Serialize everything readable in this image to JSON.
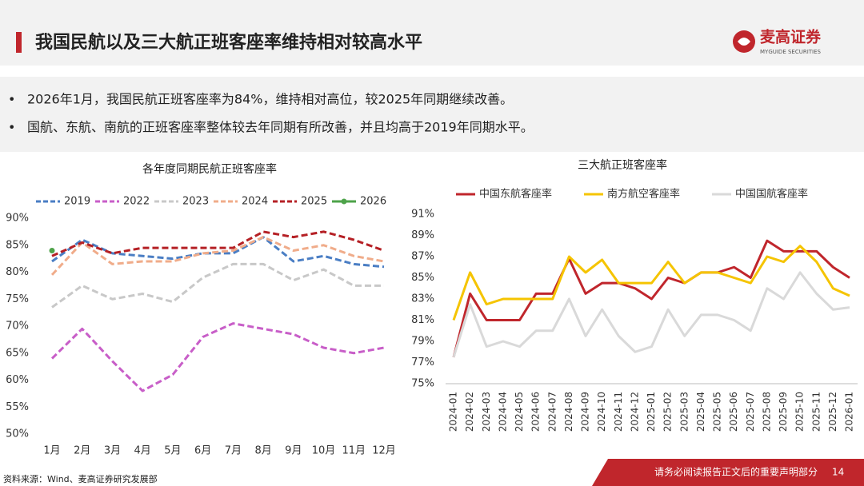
{
  "header": {
    "title": "我国民航以及三大航正班客座率维持相对较高水平",
    "logo": "麦高证券",
    "logo_sub": "MYGUIDE SECURITIES"
  },
  "bullets": [
    "2026年1月，我国民航正班客座率为84%，维持相对高位，较2025年同期继续改善。",
    "国航、东航、南航的正班客座率整体较去年同期有所改善，并且均高于2019年同期水平。"
  ],
  "chart_data": [
    {
      "type": "line",
      "title": "各年度同期民航正班客座率",
      "categories": [
        "1月",
        "2月",
        "3月",
        "4月",
        "5月",
        "6月",
        "7月",
        "8月",
        "9月",
        "10月",
        "11月",
        "12月"
      ],
      "ylim": [
        50,
        90
      ],
      "yticks": [
        {
          "value": 50,
          "label": "50%"
        },
        {
          "value": 55,
          "label": "55%"
        },
        {
          "value": 60,
          "label": "60%"
        },
        {
          "value": 65,
          "label": "65%"
        },
        {
          "value": 70,
          "label": "70%"
        },
        {
          "value": 75,
          "label": "75%"
        },
        {
          "value": 80,
          "label": "80%"
        },
        {
          "value": 85,
          "label": "85%"
        },
        {
          "value": 90,
          "label": "90%"
        }
      ],
      "grid": false,
      "series": [
        {
          "name": "2019",
          "color": "#4a7ec4",
          "dash": true,
          "values": [
            82,
            86,
            83.5,
            83,
            82.5,
            83.5,
            83.5,
            86.5,
            82,
            83,
            81.5,
            81
          ]
        },
        {
          "name": "2022",
          "color": "#c85ec8",
          "dash": true,
          "values": [
            64,
            69.5,
            63.5,
            58,
            61,
            68,
            70.5,
            69.5,
            68.5,
            66,
            65,
            66
          ]
        },
        {
          "name": "2023",
          "color": "#c8c8c8",
          "dash": true,
          "values": [
            73.5,
            77.5,
            75,
            76,
            74.5,
            79,
            81.5,
            81.5,
            78.5,
            80.5,
            77.5,
            77.5
          ]
        },
        {
          "name": "2024",
          "color": "#f0ac8a",
          "dash": true,
          "values": [
            79.5,
            85.5,
            81.5,
            82,
            82,
            83.5,
            84,
            86.5,
            84,
            85,
            83,
            82
          ]
        },
        {
          "name": "2025",
          "color": "#b52025",
          "dash": true,
          "values": [
            83,
            85.5,
            83.5,
            84.5,
            84.5,
            84.5,
            84.5,
            87.5,
            86.5,
            87.5,
            86,
            84
          ]
        },
        {
          "name": "2026",
          "color": "#4ea34a",
          "dash": false,
          "marker": true,
          "values": [
            84,
            null,
            null,
            null,
            null,
            null,
            null,
            null,
            null,
            null,
            null,
            null
          ]
        }
      ]
    },
    {
      "type": "line",
      "title": "三大航正班客座率",
      "categories": [
        "2024-01",
        "2024-02",
        "2024-03",
        "2024-04",
        "2024-05",
        "2024-06",
        "2024-07",
        "2024-08",
        "2024-09",
        "2024-10",
        "2024-11",
        "2024-12",
        "2025-01",
        "2025-02",
        "2025-03",
        "2025-04",
        "2025-05",
        "2025-06",
        "2025-07",
        "2025-08",
        "2025-09",
        "2025-10",
        "2025-11",
        "2025-12",
        "2026-01"
      ],
      "ylim": [
        75,
        91
      ],
      "yticks": [
        {
          "value": 75,
          "label": "75%"
        },
        {
          "value": 77,
          "label": "77%"
        },
        {
          "value": 79,
          "label": "79%"
        },
        {
          "value": 81,
          "label": "81%"
        },
        {
          "value": 83,
          "label": "83%"
        },
        {
          "value": 85,
          "label": "85%"
        },
        {
          "value": 87,
          "label": "87%"
        },
        {
          "value": 89,
          "label": "89%"
        },
        {
          "value": 91,
          "label": "91%"
        }
      ],
      "grid": false,
      "series": [
        {
          "name": "中国东航客座率",
          "color": "#c0262c",
          "dash": false,
          "values": [
            77.5,
            83.5,
            81,
            81,
            81,
            83.5,
            83.5,
            86.8,
            83.5,
            84.5,
            84.5,
            84,
            83,
            85,
            84.5,
            85.5,
            85.5,
            86,
            85,
            88.5,
            87.5,
            87.5,
            87.5,
            86,
            85
          ]
        },
        {
          "name": "南方航空客座率",
          "color": "#f5c400",
          "dash": false,
          "values": [
            81,
            85.5,
            82.5,
            83,
            83,
            83,
            83,
            87,
            85.5,
            86.7,
            84.5,
            84.5,
            84.5,
            86.5,
            84.5,
            85.5,
            85.5,
            85,
            84.5,
            87,
            86.5,
            88,
            86.5,
            84,
            83.3
          ]
        },
        {
          "name": "中国国航客座率",
          "color": "#d9d9d9",
          "dash": false,
          "values": [
            77.5,
            82.5,
            78.5,
            79,
            78.5,
            80,
            80,
            83,
            79.5,
            82,
            79.5,
            78,
            78.5,
            82,
            79.5,
            81.5,
            81.5,
            81,
            80,
            84,
            83,
            85.5,
            83.5,
            82,
            82.2
          ]
        }
      ]
    }
  ],
  "footer": {
    "source": "资料来源：Wind、麦高证券研究发展部",
    "notice": "请务必阅读报告正文后的重要声明部分",
    "page": "14"
  }
}
